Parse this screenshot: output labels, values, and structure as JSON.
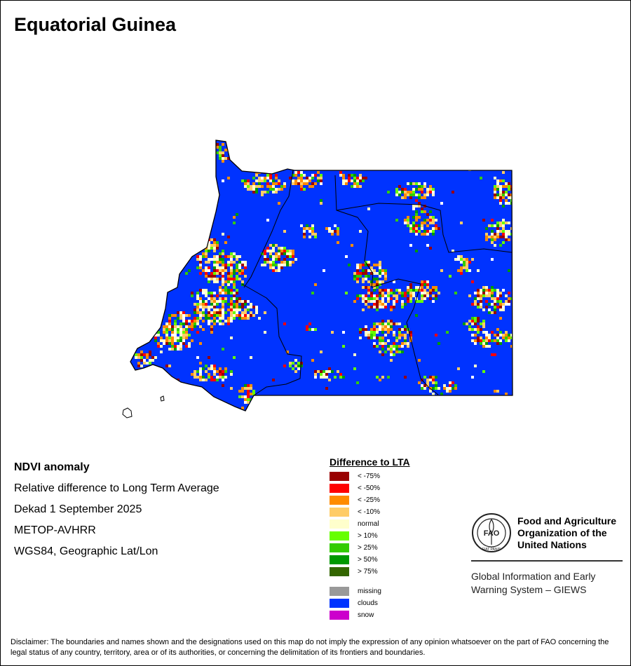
{
  "title": "Equatorial Guinea",
  "info": {
    "product": "NDVI anomaly",
    "description": "Relative difference to Long Term Average",
    "period": "Dekad 1 September 2025",
    "sensor": "METOP-AVHRR",
    "projection": "WGS84, Geographic Lat/Lon"
  },
  "legend": {
    "title": "Difference to LTA",
    "classes": [
      {
        "label": "< -75%",
        "color": "#990000"
      },
      {
        "label": "< -50%",
        "color": "#ff0000"
      },
      {
        "label": "< -25%",
        "color": "#ff8c00"
      },
      {
        "label": "< -10%",
        "color": "#ffcc66"
      },
      {
        "label": "normal",
        "color": "#ffffcc"
      },
      {
        "label": "> 10%",
        "color": "#66ff00"
      },
      {
        "label": "> 25%",
        "color": "#33cc00"
      },
      {
        "label": "> 50%",
        "color": "#009900"
      },
      {
        "label": "> 75%",
        "color": "#336600"
      }
    ],
    "special": [
      {
        "label": "missing",
        "color": "#999999"
      },
      {
        "label": "clouds",
        "color": "#0033ff"
      },
      {
        "label": "snow",
        "color": "#cc00cc"
      }
    ]
  },
  "fao": {
    "name_line1": "Food and Agriculture",
    "name_line2": "Organization of the",
    "name_line3": "United Nations",
    "logo_text": "FAO",
    "logo_motto": "FIAT PANIS",
    "giews_line1": "Global Information and Early",
    "giews_line2": "Warning System – GIEWS"
  },
  "disclaimer": "Disclaimer: The boundaries and names shown and the designations used on this map do not imply the expression of any opinion whatsoever on the part of FAO concerning the legal status of any country, territory, area or of its authorities, or concerning the delimitation of its frontiers and boundaries."
}
